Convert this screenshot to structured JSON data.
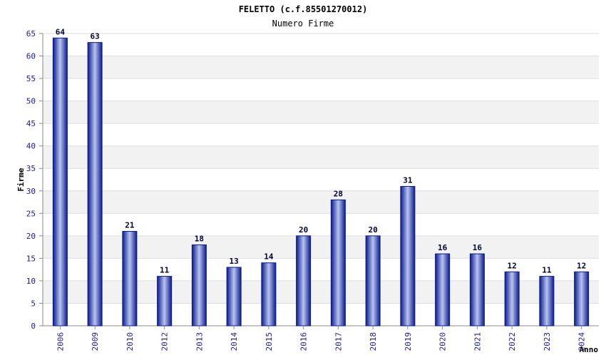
{
  "chart_data": {
    "type": "bar",
    "title": "FELETTO (c.f.85501270012)",
    "subtitle": "Numero Firme",
    "xlabel": "Anno",
    "ylabel": "Firme",
    "categories": [
      "2006",
      "2009",
      "2010",
      "2012",
      "2013",
      "2014",
      "2015",
      "2016",
      "2017",
      "2018",
      "2019",
      "2020",
      "2021",
      "2022",
      "2023",
      "2024"
    ],
    "values": [
      64,
      63,
      21,
      11,
      18,
      13,
      14,
      20,
      28,
      20,
      31,
      16,
      16,
      12,
      11,
      12
    ],
    "ylim": [
      0,
      65
    ],
    "yticks": [
      0,
      5,
      10,
      15,
      20,
      25,
      30,
      35,
      40,
      45,
      50,
      55,
      60,
      65
    ],
    "grid": true,
    "colors": {
      "bar_dark": "#0a1a8c",
      "bar_light": "#b8c4f0",
      "band": "#f2f2f2",
      "grid": "#dddddd",
      "tick_text": "#1a1aa0"
    }
  }
}
